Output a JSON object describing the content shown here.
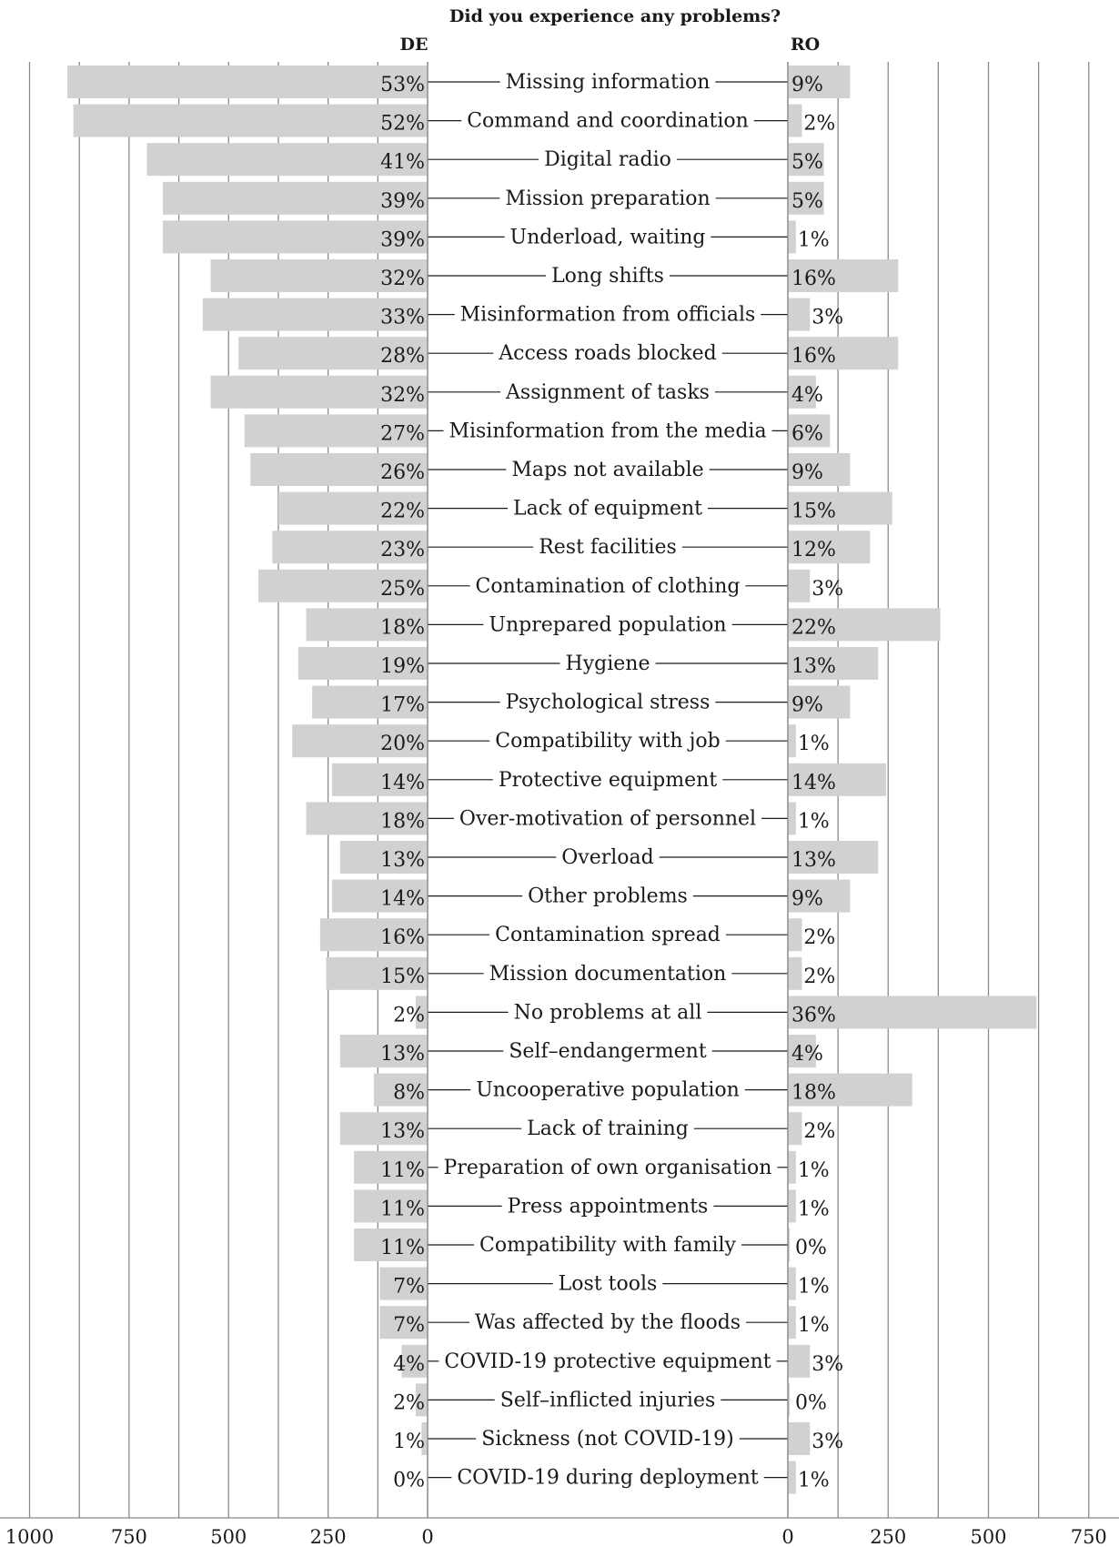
{
  "chart_data": {
    "type": "bar",
    "title": "Did you experience any problems?",
    "groups": [
      "DE",
      "RO"
    ],
    "categories": [
      "Missing information",
      "Command and coordination",
      "Digital radio",
      "Mission preparation",
      "Underload, waiting",
      "Long shifts",
      "Misinformation from officials",
      "Access roads blocked",
      "Assignment of tasks",
      "Misinformation from the media",
      "Maps not available",
      "Lack of equipment",
      "Rest facilities",
      "Contamination of clothing",
      "Unprepared population",
      "Hygiene",
      "Psychological stress",
      "Compatibility with job",
      "Protective equipment",
      "Over-motivation of personnel",
      "Overload",
      "Other problems",
      "Contamination spread",
      "Mission documentation",
      "No problems at all",
      "Self–endangerment",
      "Uncooperative population",
      "Lack of training",
      "Preparation of own organisation",
      "Press appointments",
      "Compatibility with family",
      "Lost tools",
      "Was affected by the floods",
      "COVID-19 protective equipment",
      "Self–inflicted injuries",
      "Sickness (not COVID-19)",
      "COVID-19 during deployment"
    ],
    "series": [
      {
        "name": "DE",
        "values": [
          905,
          890,
          705,
          665,
          665,
          545,
          565,
          475,
          545,
          460,
          445,
          375,
          390,
          425,
          305,
          325,
          290,
          340,
          240,
          305,
          220,
          240,
          270,
          255,
          30,
          220,
          135,
          220,
          185,
          185,
          185,
          120,
          120,
          65,
          30,
          15,
          0
        ],
        "percent_labels": [
          "53%",
          "52%",
          "41%",
          "39%",
          "39%",
          "32%",
          "33%",
          "28%",
          "32%",
          "27%",
          "26%",
          "22%",
          "23%",
          "25%",
          "18%",
          "19%",
          "17%",
          "20%",
          "14%",
          "18%",
          "13%",
          "14%",
          "16%",
          "15%",
          "2%",
          "13%",
          "8%",
          "13%",
          "11%",
          "11%",
          "11%",
          "7%",
          "7%",
          "4%",
          "2%",
          "1%",
          "0%"
        ]
      },
      {
        "name": "RO",
        "values": [
          155,
          35,
          90,
          90,
          20,
          275,
          55,
          275,
          70,
          105,
          155,
          260,
          205,
          55,
          380,
          225,
          155,
          20,
          245,
          20,
          225,
          155,
          35,
          35,
          620,
          70,
          310,
          35,
          20,
          20,
          5,
          20,
          20,
          55,
          5,
          55,
          20
        ],
        "percent_labels": [
          "9%",
          "2%",
          "5%",
          "5%",
          "1%",
          "16%",
          "3%",
          "16%",
          "4%",
          "6%",
          "9%",
          "15%",
          "12%",
          "3%",
          "22%",
          "13%",
          "9%",
          "1%",
          "14%",
          "1%",
          "13%",
          "9%",
          "2%",
          "2%",
          "36%",
          "4%",
          "18%",
          "2%",
          "1%",
          "1%",
          "0%",
          "1%",
          "1%",
          "3%",
          "0%",
          "3%",
          "1%"
        ]
      }
    ],
    "axes": {
      "DE": {
        "range": [
          0,
          1000
        ],
        "ticks": [
          1000,
          750,
          500,
          250,
          0
        ],
        "direction": "leftward"
      },
      "RO": {
        "range": [
          0,
          750
        ],
        "ticks": [
          0,
          250,
          500,
          750
        ],
        "direction": "rightward"
      }
    },
    "grid": true,
    "bar_color": "#d0d1d3",
    "grid_color": "#8a8a8a",
    "connector_color": "#1a1a1a"
  }
}
